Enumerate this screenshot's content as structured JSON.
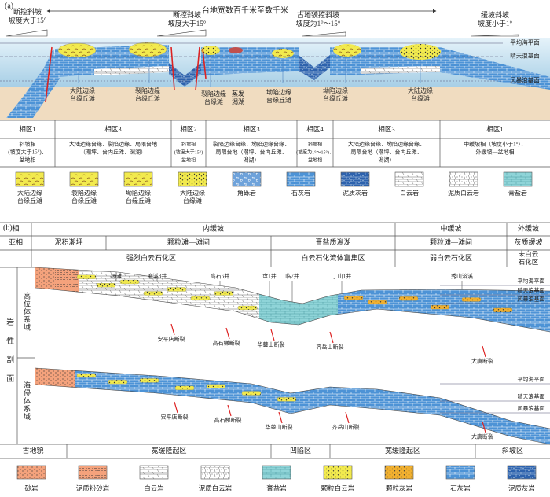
{
  "panel_a": {
    "label": "(a)",
    "width_note": "台地宽数百千米至数千米",
    "slopes": [
      [
        "断控斜坡",
        "坡度大于15°"
      ],
      [
        "断控斜坡",
        "坡度大于15°"
      ],
      [
        "古地貌控斜坡",
        "坡度为1°～15°"
      ],
      [
        "缓坡斜坡",
        "坡度小于1°"
      ]
    ],
    "levels": [
      "平均海平面",
      "晴天浪基面",
      "风暴浪基面"
    ],
    "units": [
      [
        "大陆边缘",
        "台缘丘滩"
      ],
      [
        "裂陷边缘",
        "台缘丘滩"
      ],
      [
        "裂陷边缘",
        "台缘滩"
      ],
      [
        "蒸发",
        "潟湖"
      ],
      [
        "坳陷边缘",
        "台缘丘滩"
      ],
      [
        "坳陷边缘",
        "台缘丘滩"
      ],
      [
        "大陆边缘",
        "台缘滩"
      ]
    ],
    "zones": [
      {
        "name": "相区1",
        "desc": [
          "斜坡相",
          "(坡度大于15°)、",
          "盆地相"
        ]
      },
      {
        "name": "相区3",
        "desc": [
          "大陆边缘台缘、裂陷边缘、局限台地",
          "（潮坪、台内丘滩、潟湖）"
        ]
      },
      {
        "name": "相区2",
        "desc": [
          "斜坡相",
          "(坡度大于15°)",
          "盆地相"
        ]
      },
      {
        "name": "相区3",
        "desc": [
          "裂陷边缘台缘、坳陷边缘台缘、",
          "局限台地（潮坪、台内丘滩、",
          "潟湖）"
        ]
      },
      {
        "name": "相区4",
        "desc": [
          "斜坡相",
          "(坡度为1°～15°)、",
          "盆地相"
        ]
      },
      {
        "name": "相区3",
        "desc": [
          "大陆边缘台缘、坳陷边缘台缘、",
          "局限台地（潮坪、台内丘滩、",
          "潟湖）"
        ]
      },
      {
        "name": "相区1",
        "desc": [
          "中缓坡相（坡度小于1°）、",
          "外缓坡—盆地相"
        ]
      }
    ],
    "legend": [
      [
        "大陆边缘",
        "台缘丘滩"
      ],
      [
        "裂陷边缘",
        "台缘丘滩"
      ],
      [
        "坳陷边缘",
        "台缘丘滩"
      ],
      [
        "大陆边缘",
        "台缘滩"
      ],
      [
        "角砾岩"
      ],
      [
        "石灰岩"
      ],
      [
        "泥质灰岩"
      ],
      [
        "白云岩"
      ],
      [
        "泥质白云岩"
      ],
      [
        "膏盐岩"
      ]
    ]
  },
  "panel_b": {
    "label": "(b)",
    "rows": [
      {
        "header": "相",
        "cells": [
          "内缓坡",
          "中缓坡",
          "外缓坡"
        ]
      },
      {
        "header": "亚相",
        "cells": [
          "泥积潮坪",
          "颗粒滩—滩间",
          "膏盐质潟湖",
          "颗粒滩—滩间",
          "灰质缓坡"
        ]
      },
      {
        "cells": [
          "强烈白云石化区",
          "白云石化流体富集区",
          "弱白云石化区",
          [
            "未白云",
            "石化区"
          ]
        ]
      }
    ],
    "section_label": "岩性剖面",
    "systems": [
      {
        "name": "高位体系域",
        "wells": [
          "杨滩",
          "磨溪8井",
          "高石6井",
          "盘1井",
          "临7井",
          "丁山1井",
          "秀山溶溪"
        ],
        "faults": [
          "安平店断裂",
          "高石梯断裂",
          "华蓥山断裂",
          "齐岳山断裂",
          "大唐断裂"
        ],
        "levels": [
          "平均海平面",
          "晴天浪基面",
          "风暴浪基面"
        ]
      },
      {
        "name": "海侵体系域",
        "faults": [
          "安平店断裂",
          "高石梯断裂",
          "华蓥山断裂",
          "齐岳山断裂",
          "大唐断裂"
        ],
        "levels": [
          "平均海平面",
          "晴天浪基面",
          "风暴浪基面"
        ]
      }
    ],
    "paleo": {
      "header": "古地貌",
      "cells": [
        "宽缓隆起区",
        "凹陷区",
        "宽缓隆起区",
        "斜坡区"
      ]
    },
    "legend": [
      "砂岩",
      "泥质粉砂岩",
      "白云岩",
      "泥质白云岩",
      "膏盐岩",
      "颗粒白云岩",
      "颗粒灰岩",
      "石灰岩",
      "泥质灰岩"
    ]
  }
}
